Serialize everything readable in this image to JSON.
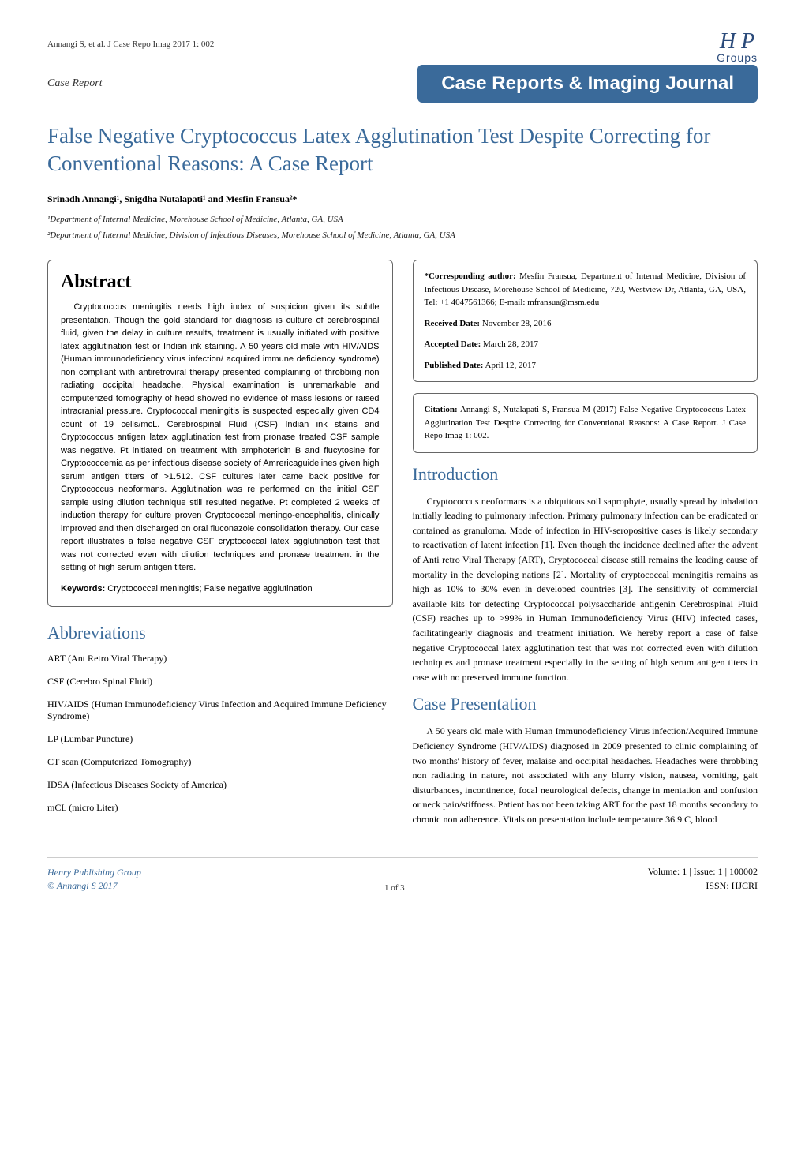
{
  "header": {
    "citation_brief": "Annangi S, et al. J Case Repo Imag 2017 1: 002",
    "logo_text": "H P",
    "logo_sub": "Groups",
    "case_report_label": "Case Report",
    "journal_banner": "Case Reports & Imaging Journal"
  },
  "article": {
    "title": "False Negative Cryptococcus Latex Agglutination Test Despite Correcting for Conventional Reasons: A Case Report",
    "authors_html": "Srinadh Annangi¹, Snigdha Nutalapati¹ and Mesfin Fransua²*",
    "affiliations": [
      "¹Department of Internal Medicine, Morehouse School of Medicine, Atlanta, GA, USA",
      "²Department of Internal Medicine, Division of Infectious Diseases, Morehouse School of Medicine, Atlanta, GA, USA"
    ]
  },
  "abstract": {
    "heading": "Abstract",
    "text": "Cryptococcus meningitis needs high index of suspicion given its subtle presentation. Though the gold standard for diagnosis is culture of cerebrospinal fluid, given the delay in culture results, treatment is usually initiated with positive latex agglutination test or Indian ink staining. A 50 years old male with HIV/AIDS (Human immunodeficiency virus infection/ acquired immune deficiency syndrome) non compliant with antiretroviral therapy presented complaining of throbbing non radiating occipital headache. Physical examination is unremarkable and computerized tomography of head showed no evidence of mass lesions or raised intracranial pressure. Cryptococcal meningitis is suspected especially given CD4 count of 19 cells/mcL. Cerebrospinal Fluid (CSF) Indian ink stains and Cryptococcus antigen latex agglutination test from pronase treated CSF sample was negative. Pt initiated on treatment with amphotericin B and flucytosine for Cryptococcemia as per infectious disease society of Amrericaguidelines given high serum antigen titers of >1.512. CSF cultures later came back positive for Cryptococcus neoformans. Agglutination was re performed on the initial CSF sample using dilution technique still resulted negative. Pt completed 2 weeks of induction therapy for culture proven Cryptococcal meningo-encephalitis, clinically improved and then discharged on oral fluconazole consolidation therapy. Our case report illustrates a false negative CSF cryptococcal latex agglutination test that was not corrected even with dilution techniques and pronase treatment in the setting of high serum antigen titers.",
    "keywords_label": "Keywords:",
    "keywords_text": " Cryptococcal meningitis; False negative agglutination"
  },
  "abbreviations": {
    "heading": "Abbreviations",
    "items": [
      "ART (Ant Retro Viral Therapy)",
      "CSF (Cerebro Spinal Fluid)",
      "HIV/AIDS (Human Immunodeficiency Virus Infection and Acquired Immune Deficiency Syndrome)",
      "LP (Lumbar Puncture)",
      "CT scan (Computerized Tomography)",
      "IDSA (Infectious Diseases Society of America)",
      "mCL (micro Liter)"
    ]
  },
  "meta": {
    "corresponding_label": "*Corresponding author:",
    "corresponding_text": " Mesfin Fransua, Department of Internal Medicine, Division of Infectious Disease, Morehouse School of Medicine, 720, Westview Dr, Atlanta, GA, USA, Tel: +1 4047561366; E-mail: mfransua@msm.edu",
    "received_label": "Received Date:",
    "received_text": " November 28, 2016",
    "accepted_label": "Accepted Date:",
    "accepted_text": " March 28, 2017",
    "published_label": "Published Date:",
    "published_text": " April 12, 2017",
    "citation_label": "Citation:",
    "citation_text": " Annangi S, Nutalapati S, Fransua M (2017) False Negative Cryptococcus Latex Agglutination Test Despite Correcting for Conventional Reasons: A Case Report. J Case Repo Imag 1: 002."
  },
  "introduction": {
    "heading": "Introduction",
    "text": "Cryptococcus neoformans is a ubiquitous soil saprophyte, usually spread by inhalation initially leading to pulmonary infection. Primary pulmonary infection can be eradicated or contained as granuloma. Mode of infection in HIV-seropositive cases is likely secondary to reactivation of latent infection [1]. Even though the incidence declined after the advent of Anti retro Viral Therapy (ART), Cryptococcal disease still remains the leading cause of mortality in the developing nations [2]. Mortality of cryptococcal meningitis remains as high as 10% to 30% even in developed countries [3]. The sensitivity of commercial available kits for detecting Cryptococcal polysaccharide antigenin Cerebrospinal Fluid (CSF) reaches up to >99% in Human Immunodeficiency Virus (HIV) infected cases, facilitatingearly diagnosis and treatment initiation. We hereby report a case of false negative Cryptococcal latex agglutination test that was not corrected even with dilution techniques and pronase treatment especially in the setting of high serum antigen titers in case with no preserved immune function."
  },
  "case": {
    "heading": "Case Presentation",
    "text": "A 50 years old male with Human Immunodeficiency Virus infection/Acquired Immune Deficiency Syndrome (HIV/AIDS) diagnosed in 2009 presented to clinic complaining of two months' history of fever, malaise and occipital headaches. Headaches were throbbing non radiating in nature, not associated with any blurry vision, nausea, vomiting, gait disturbances, incontinence, focal neurological defects, change in mentation and confusion or neck pain/stiffness. Patient has not been taking ART for the past 18 months secondary to chronic non adherence. Vitals on presentation include temperature 36.9 C, blood"
  },
  "footer": {
    "publisher": "Henry Publishing Group",
    "copyright": "© Annangi S 2017",
    "page": "1 of 3",
    "volume": "Volume: 1 | Issue: 1 | 100002",
    "issn": "ISSN: HJCRI"
  },
  "colors": {
    "primary_blue": "#3a6a9a",
    "dark_blue": "#2a4a7a",
    "text": "#000000",
    "border": "#666666"
  }
}
